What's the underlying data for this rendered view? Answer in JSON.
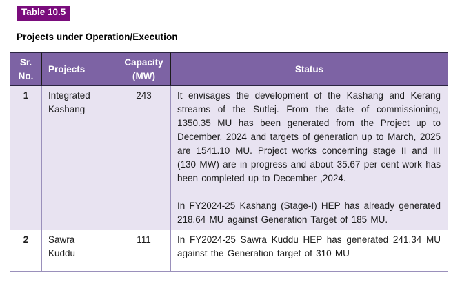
{
  "page": {
    "table_label": "Table 10.5",
    "heading": "Projects under Operation/Execution"
  },
  "colors": {
    "label_bg": "#7A0C7C",
    "header_bg": "#7D63A4",
    "banded_row_bg": "#E8E3F1",
    "header_text": "#FFFFFF",
    "body_border": "#9A90BB"
  },
  "table": {
    "columns": [
      {
        "label": "Sr. No."
      },
      {
        "label": "Projects"
      },
      {
        "label": "Capacity (MW)"
      },
      {
        "label": "Status"
      }
    ],
    "rows": [
      {
        "sr_no": "1",
        "project": "Integrated Kashang",
        "capacity": "243",
        "status_paragraphs": [
          "It envisages the development of the Kashang and Kerang streams of the Sutlej. From the date of commissioning, 1350.35 MU has been generated from the Project up to December, 2024 and targets of generation up to March, 2025 are 1541.10 MU. Project works concerning stage II and III (130 MW) are in progress and about 35.67 per cent work has been completed up to December ,2024.",
          "In FY2024-25 Kashang (Stage-I) HEP has already generated 218.64 MU against Generation Target of 185 MU."
        ]
      },
      {
        "sr_no": "2",
        "project": "Sawra Kuddu",
        "capacity": "111",
        "status_paragraphs": [
          "In FY2024-25 Sawra Kuddu HEP has generated 241.34 MU against the Generation target of 310 MU"
        ]
      }
    ]
  }
}
